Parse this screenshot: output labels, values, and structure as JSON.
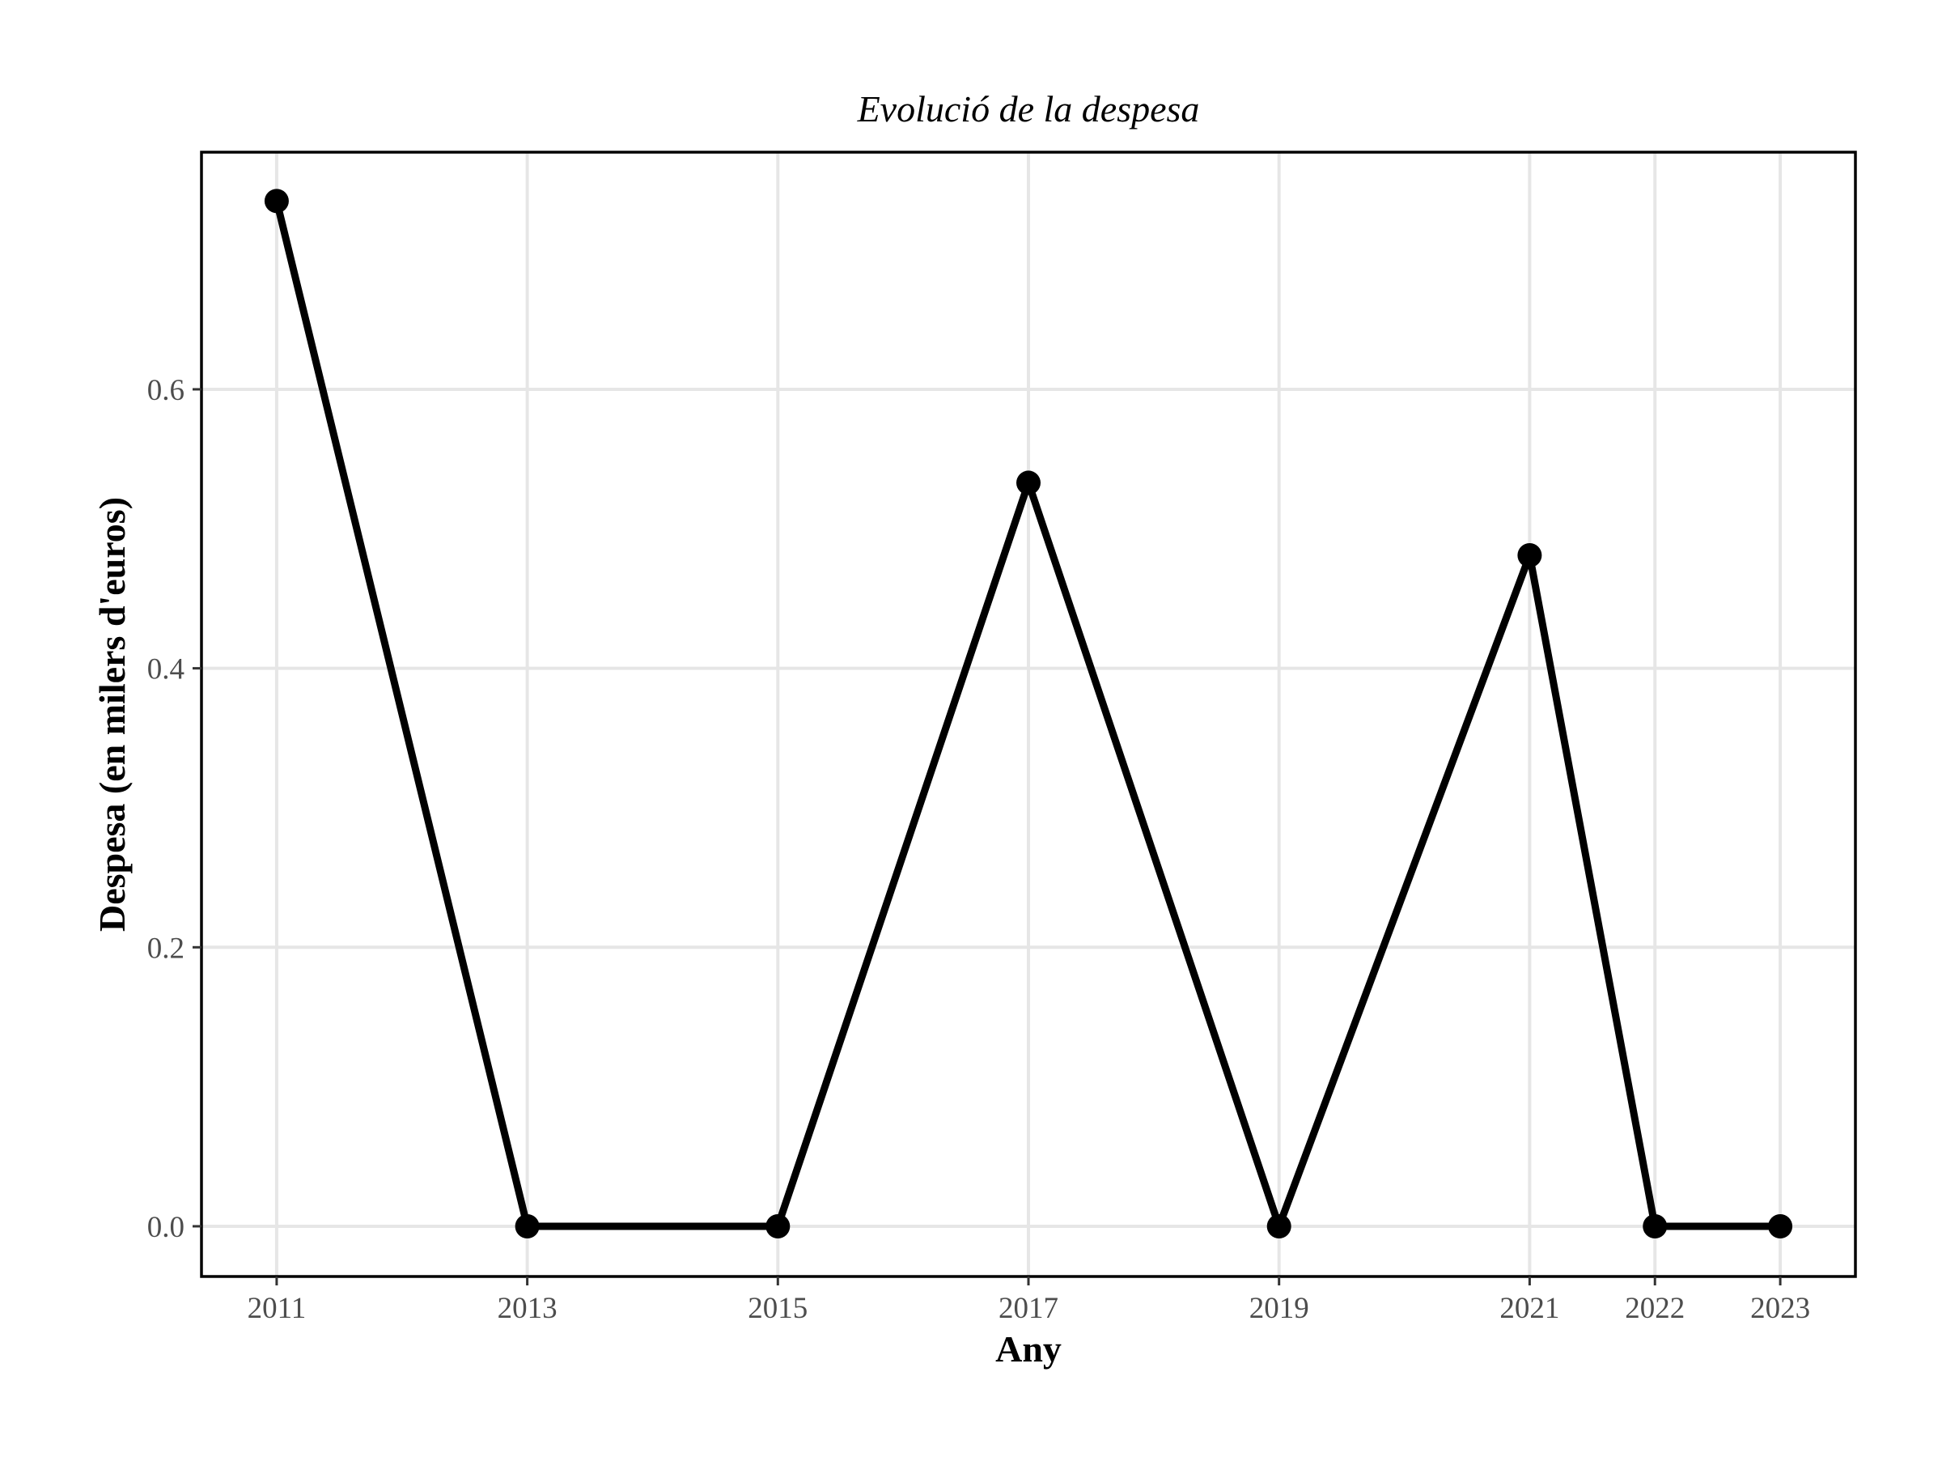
{
  "chart_data": {
    "type": "line",
    "title": "Evolució de la despesa",
    "xlabel": "Any",
    "ylabel": "Despesa (en milers d'euros)",
    "x": [
      2011,
      2013,
      2015,
      2017,
      2019,
      2021,
      2022,
      2023
    ],
    "x_tick_labels": [
      "2011",
      "2013",
      "2015",
      "2017",
      "2019",
      "2021",
      "2022",
      "2023"
    ],
    "y_ticks": [
      0.0,
      0.2,
      0.4,
      0.6
    ],
    "y_tick_labels": [
      "0.0",
      "0.2",
      "0.4",
      "0.6"
    ],
    "xlim": [
      2010.4,
      2023.6
    ],
    "ylim": [
      -0.036,
      0.77
    ],
    "series": [
      {
        "values": [
          0.735,
          0.0,
          0.0,
          0.533,
          0.0,
          0.481,
          0.0,
          0.0
        ],
        "color": "#000000"
      }
    ],
    "grid": true,
    "legend": "none"
  }
}
